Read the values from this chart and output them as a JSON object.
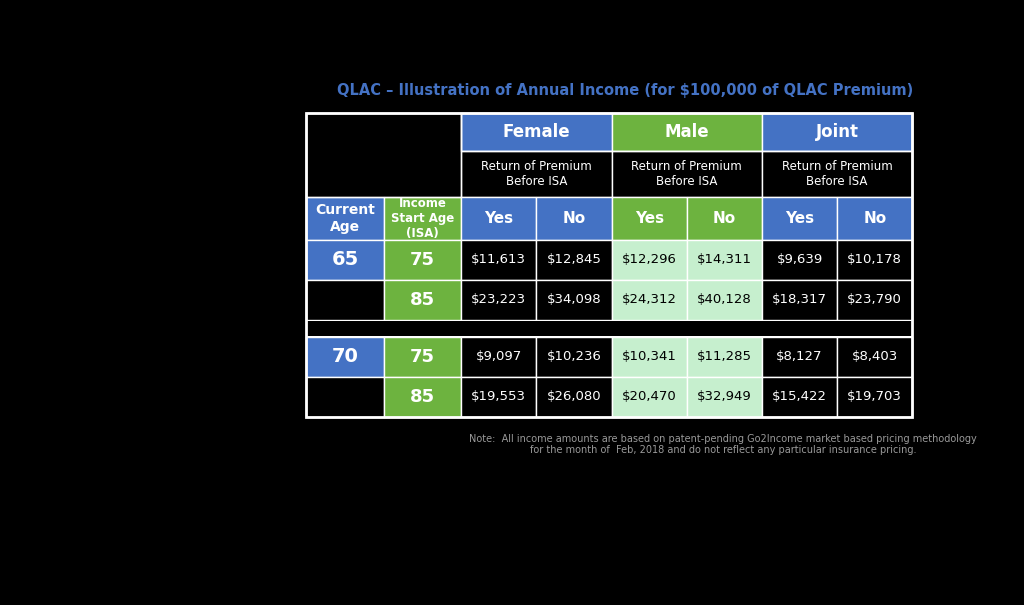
{
  "title": "QLAC – Illustration of Annual Income (for $100,000 of QLAC Premium)",
  "title_color": "#4472c4",
  "background_color": "#000000",
  "note": "Note:  All income amounts are based on patent-pending Go2Income market based pricing methodology\nfor the month of  Feb, 2018 and do not reflect any particular insurance pricing.",
  "colors": {
    "blue": "#4472c4",
    "green": "#6db33f",
    "black": "#000000",
    "white": "#ffffff",
    "light_green": "#c6efce",
    "off_white": "#f0f0f0"
  },
  "header1": [
    "Female",
    "Male",
    "Joint"
  ],
  "header1_colors": [
    "blue",
    "green",
    "blue"
  ],
  "header2": "Return of Premium\nBefore ISA",
  "col_headers": [
    "Yes",
    "No",
    "Yes",
    "No",
    "Yes",
    "No"
  ],
  "col_header_colors": [
    "blue",
    "blue",
    "green",
    "green",
    "blue",
    "blue"
  ],
  "data": [
    {
      "age": "65",
      "rows": [
        {
          "isa": "75",
          "vals": [
            "$11,613",
            "$12,845",
            "$12,296",
            "$14,311",
            "$9,639",
            "$10,178"
          ]
        },
        {
          "isa": "85",
          "vals": [
            "$23,223",
            "$34,098",
            "$24,312",
            "$40,128",
            "$18,317",
            "$23,790"
          ]
        }
      ]
    },
    {
      "age": "70",
      "rows": [
        {
          "isa": "75",
          "vals": [
            "$9,097",
            "$10,236",
            "$10,341",
            "$11,285",
            "$8,127",
            "$8,403"
          ]
        },
        {
          "isa": "85",
          "vals": [
            "$19,553",
            "$26,080",
            "$20,470",
            "$32,949",
            "$15,422",
            "$19,703"
          ]
        }
      ]
    }
  ],
  "val_bg_colors": [
    [
      "black",
      "black",
      "light_green",
      "light_green",
      "black",
      "black"
    ],
    [
      "black",
      "black",
      "light_green",
      "light_green",
      "black",
      "black"
    ]
  ],
  "val_text_colors": [
    [
      "white",
      "white",
      "black",
      "black",
      "white",
      "white"
    ],
    [
      "white",
      "white",
      "black",
      "black",
      "white",
      "white"
    ]
  ],
  "female_no_col_idx": [
    0,
    1
  ],
  "male_col_idx": [
    2,
    3
  ],
  "joint_col_idx": [
    4,
    5
  ]
}
